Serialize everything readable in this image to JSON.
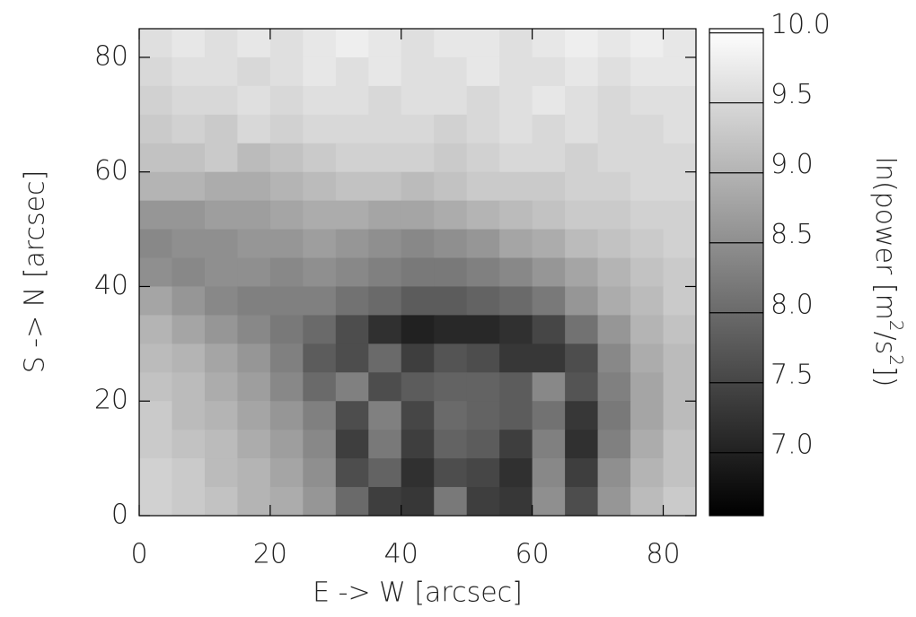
{
  "chart_data": {
    "type": "heatmap",
    "xlabel": "E -> W [arcsec]",
    "ylabel": "S -> N [arcsec]",
    "colorbar_label": [
      "ln(power [m",
      "2",
      "/s",
      "2",
      "])"
    ],
    "xlim": [
      0,
      85
    ],
    "ylim": [
      0,
      85
    ],
    "xticks": [
      0,
      20,
      40,
      60,
      80
    ],
    "yticks": [
      0,
      20,
      40,
      60,
      80
    ],
    "zlim": [
      6.55,
      10.03
    ],
    "zticks": [
      {
        "value": 7,
        "label": "7.0"
      },
      {
        "value": 7.5,
        "label": "7.5"
      },
      {
        "value": 8,
        "label": "8.0"
      },
      {
        "value": 8.5,
        "label": "8.5"
      },
      {
        "value": 9,
        "label": "9.0"
      },
      {
        "value": 9.5,
        "label": "9.5"
      },
      {
        "value": 10,
        "label": "10.0"
      }
    ],
    "x": [
      2.5,
      7.5,
      12.5,
      17.5,
      22.5,
      27.5,
      32.5,
      37.5,
      42.5,
      47.5,
      52.5,
      57.5,
      62.5,
      67.5,
      72.5,
      77.5,
      82.5
    ],
    "y": [
      82.5,
      77.5,
      72.5,
      67.5,
      62.5,
      57.5,
      52.5,
      47.5,
      42.5,
      37.5,
      32.5,
      27.5,
      22.5,
      17.5,
      12.5,
      7.5,
      2.5
    ],
    "z": [
      [
        9.6,
        9.7,
        9.6,
        9.7,
        9.6,
        9.7,
        9.8,
        9.7,
        9.6,
        9.7,
        9.7,
        9.6,
        9.7,
        9.8,
        9.7,
        9.8,
        9.7
      ],
      [
        9.5,
        9.6,
        9.6,
        9.5,
        9.6,
        9.7,
        9.6,
        9.7,
        9.6,
        9.6,
        9.7,
        9.6,
        9.6,
        9.7,
        9.6,
        9.7,
        9.7
      ],
      [
        9.4,
        9.5,
        9.5,
        9.6,
        9.5,
        9.6,
        9.6,
        9.5,
        9.6,
        9.6,
        9.5,
        9.6,
        9.7,
        9.6,
        9.5,
        9.6,
        9.6
      ],
      [
        9.3,
        9.4,
        9.3,
        9.5,
        9.4,
        9.5,
        9.5,
        9.5,
        9.5,
        9.4,
        9.5,
        9.6,
        9.5,
        9.6,
        9.5,
        9.5,
        9.6
      ],
      [
        9.2,
        9.2,
        9.3,
        9.1,
        9.2,
        9.3,
        9.4,
        9.4,
        9.4,
        9.3,
        9.4,
        9.5,
        9.5,
        9.4,
        9.5,
        9.5,
        9.5
      ],
      [
        9.0,
        9.0,
        8.9,
        8.9,
        9.0,
        9.1,
        9.2,
        9.2,
        9.1,
        9.2,
        9.3,
        9.3,
        9.3,
        9.4,
        9.4,
        9.5,
        9.5
      ],
      [
        8.6,
        8.6,
        8.7,
        8.7,
        8.8,
        8.9,
        8.9,
        8.8,
        8.8,
        8.9,
        9.0,
        9.1,
        9.2,
        9.3,
        9.3,
        9.4,
        9.4
      ],
      [
        8.4,
        8.5,
        8.5,
        8.6,
        8.6,
        8.7,
        8.6,
        8.5,
        8.4,
        8.5,
        8.6,
        8.8,
        8.9,
        9.1,
        9.2,
        9.3,
        9.4
      ],
      [
        8.5,
        8.4,
        8.5,
        8.5,
        8.4,
        8.5,
        8.4,
        8.3,
        8.2,
        8.2,
        8.3,
        8.4,
        8.6,
        8.8,
        9.0,
        9.2,
        9.3
      ],
      [
        8.8,
        8.6,
        8.4,
        8.3,
        8.3,
        8.3,
        8.1,
        8.0,
        7.8,
        7.8,
        7.9,
        8.0,
        8.2,
        8.6,
        8.9,
        9.1,
        9.3
      ],
      [
        9.0,
        8.8,
        8.6,
        8.4,
        8.2,
        8.0,
        7.6,
        7.2,
        7.0,
        7.1,
        7.1,
        7.2,
        7.5,
        8.1,
        8.6,
        9.0,
        9.2
      ],
      [
        9.1,
        9.0,
        8.8,
        8.6,
        8.3,
        7.8,
        7.6,
        8.0,
        7.4,
        7.7,
        7.6,
        7.3,
        7.3,
        7.6,
        8.4,
        8.9,
        9.1
      ],
      [
        9.2,
        9.1,
        8.9,
        8.7,
        8.4,
        8.0,
        8.3,
        7.6,
        7.8,
        7.9,
        7.9,
        7.8,
        8.4,
        7.7,
        8.3,
        8.8,
        9.1
      ],
      [
        9.3,
        9.1,
        9.0,
        8.8,
        8.6,
        8.3,
        7.6,
        8.3,
        7.5,
        8.0,
        7.9,
        7.8,
        8.1,
        7.3,
        8.2,
        8.8,
        9.1
      ],
      [
        9.3,
        9.2,
        9.1,
        8.9,
        8.7,
        8.4,
        7.4,
        8.2,
        7.4,
        7.9,
        7.8,
        7.4,
        8.3,
        7.2,
        8.3,
        8.9,
        9.2
      ],
      [
        9.4,
        9.3,
        9.1,
        9.0,
        8.8,
        8.5,
        7.6,
        7.9,
        7.2,
        7.6,
        7.5,
        7.2,
        8.4,
        7.4,
        8.5,
        9.0,
        9.2
      ],
      [
        9.4,
        9.3,
        9.2,
        9.0,
        8.9,
        8.6,
        8.0,
        7.4,
        7.3,
        8.2,
        7.4,
        7.3,
        8.5,
        7.6,
        8.6,
        9.1,
        9.3
      ]
    ]
  }
}
